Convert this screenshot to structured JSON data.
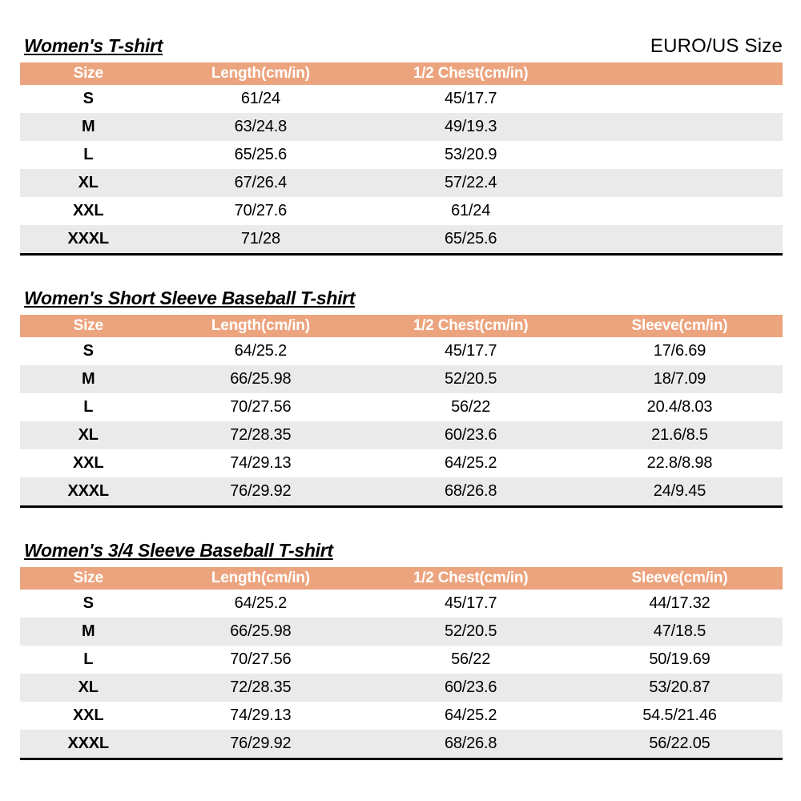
{
  "page": {
    "size_standard_label": "EURO/US Size"
  },
  "colors": {
    "header_bg": "#ECA47E",
    "header_text": "#FFFFFF",
    "row_alt_bg": "#EAEAEA",
    "table_bottom_border": "#000000"
  },
  "tables": [
    {
      "title": "Women's T-shirt",
      "columns": [
        "Size",
        "Length(cm/in)",
        "1/2 Chest(cm/in)",
        ""
      ],
      "rows": [
        [
          "S",
          "61/24",
          "45/17.7",
          ""
        ],
        [
          "M",
          "63/24.8",
          "49/19.3",
          ""
        ],
        [
          "L",
          "65/25.6",
          "53/20.9",
          ""
        ],
        [
          "XL",
          "67/26.4",
          "57/22.4",
          ""
        ],
        [
          "XXL",
          "70/27.6",
          "61/24",
          ""
        ],
        [
          "XXXL",
          "71/28",
          "65/25.6",
          ""
        ]
      ]
    },
    {
      "title": "Women's Short Sleeve Baseball T-shirt",
      "columns": [
        "Size",
        "Length(cm/in)",
        "1/2 Chest(cm/in)",
        "Sleeve(cm/in)"
      ],
      "rows": [
        [
          "S",
          "64/25.2",
          "45/17.7",
          "17/6.69"
        ],
        [
          "M",
          "66/25.98",
          "52/20.5",
          "18/7.09"
        ],
        [
          "L",
          "70/27.56",
          "56/22",
          "20.4/8.03"
        ],
        [
          "XL",
          "72/28.35",
          "60/23.6",
          "21.6/8.5"
        ],
        [
          "XXL",
          "74/29.13",
          "64/25.2",
          "22.8/8.98"
        ],
        [
          "XXXL",
          "76/29.92",
          "68/26.8",
          "24/9.45"
        ]
      ]
    },
    {
      "title": "Women's 3/4 Sleeve Baseball T-shirt",
      "columns": [
        "Size",
        "Length(cm/in)",
        "1/2 Chest(cm/in)",
        "Sleeve(cm/in)"
      ],
      "rows": [
        [
          "S",
          "64/25.2",
          "45/17.7",
          "44/17.32"
        ],
        [
          "M",
          "66/25.98",
          "52/20.5",
          "47/18.5"
        ],
        [
          "L",
          "70/27.56",
          "56/22",
          "50/19.69"
        ],
        [
          "XL",
          "72/28.35",
          "60/23.6",
          "53/20.87"
        ],
        [
          "XXL",
          "74/29.13",
          "64/25.2",
          "54.5/21.46"
        ],
        [
          "XXXL",
          "76/29.92",
          "68/26.8",
          "56/22.05"
        ]
      ]
    }
  ]
}
